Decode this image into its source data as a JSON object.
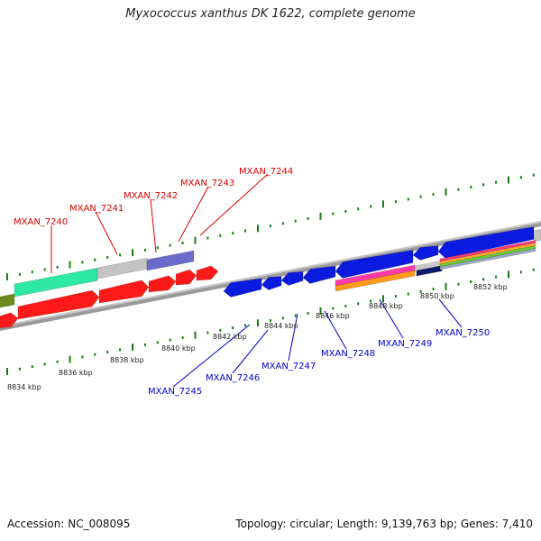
{
  "title": "Myxococcus xanthus DK 1622, complete genome",
  "footer": {
    "accession": "Accession: NC_008095",
    "summary": "Topology: circular; Length: 9,139,763 bp; Genes: 7,410"
  },
  "colors": {
    "backbone": "#8a8a8a",
    "tick": "#1a7a1a",
    "forward_label": "#e00000",
    "reverse_label": "#0000cc"
  },
  "scale_ticks": [
    {
      "label": "8834 kbp"
    },
    {
      "label": "8836 kbp"
    },
    {
      "label": "8838 kbp"
    },
    {
      "label": "8840 kbp"
    },
    {
      "label": "8842 kbp"
    },
    {
      "label": "8844 kbp"
    },
    {
      "label": "8846 kbp"
    },
    {
      "label": "8848 kbp"
    },
    {
      "label": "8850 kbp"
    },
    {
      "label": "8852 kbp"
    }
  ],
  "forward_genes": [
    {
      "label": "MXAN_7240"
    },
    {
      "label": "MXAN_7241"
    },
    {
      "label": "MXAN_7242"
    },
    {
      "label": "MXAN_7243"
    },
    {
      "label": "MXAN_7244"
    }
  ],
  "reverse_genes": [
    {
      "label": "MXAN_7245"
    },
    {
      "label": "MXAN_7246"
    },
    {
      "label": "MXAN_7247"
    },
    {
      "label": "MXAN_7248"
    },
    {
      "label": "MXAN_7249"
    },
    {
      "label": "MXAN_7250"
    }
  ]
}
